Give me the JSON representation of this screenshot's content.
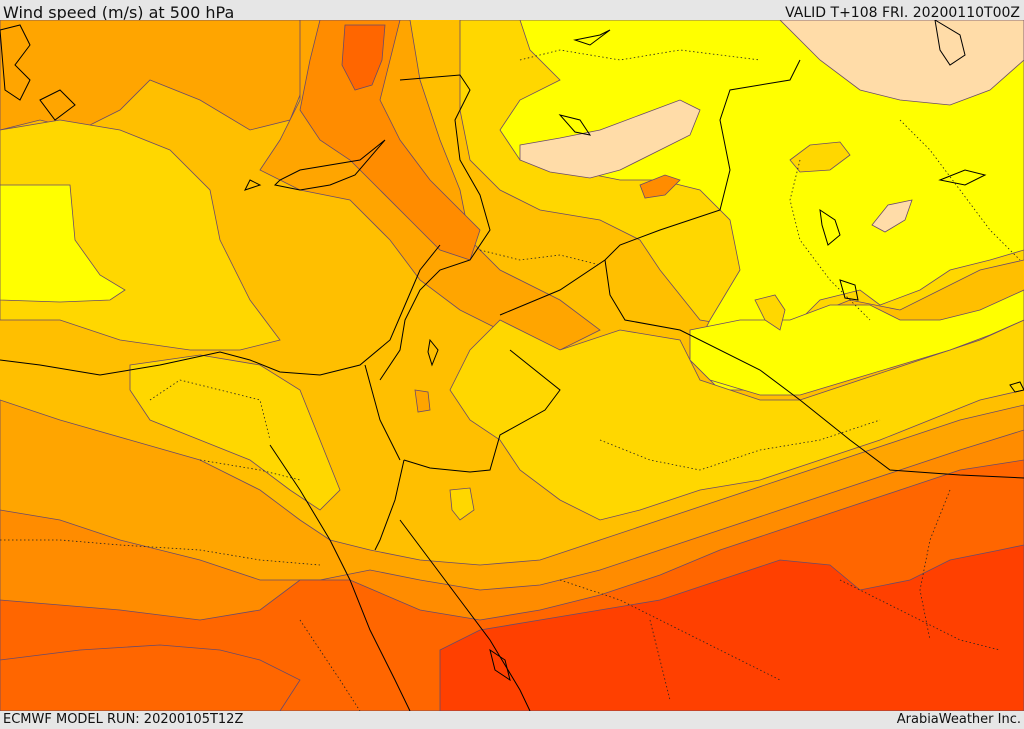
{
  "header": {
    "title": "Wind speed (m/s) at 500 hPa",
    "valid": "VALID T+108 FRI. 20200110T00Z"
  },
  "footer": {
    "model_run": "ECMWF MODEL RUN: 20200105T12Z",
    "credit": "ArabiaWeather Inc."
  },
  "palette": {
    "lightest": "#ffdca8",
    "yellow": "#ffff00",
    "gold": "#ffd700",
    "amber": "#ffbf00",
    "orange_light": "#ffa500",
    "orange": "#ff8c00",
    "orange_red": "#ff6600",
    "red_orange": "#ff4000"
  }
}
